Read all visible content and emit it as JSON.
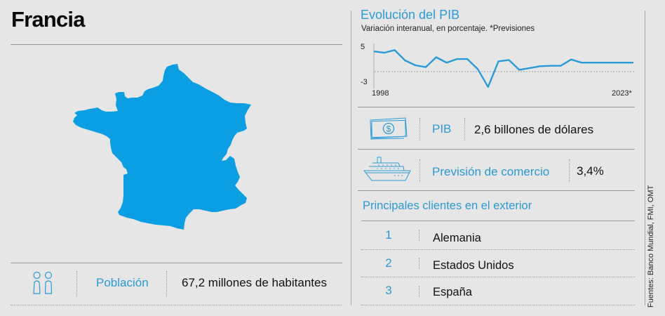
{
  "header": {
    "title": "Francia"
  },
  "colors": {
    "accent": "#2a9ad6",
    "map_fill": "#0b9ee3",
    "background": "#e6e6e6",
    "text": "#111111"
  },
  "population": {
    "icon": "people-icon",
    "label": "Población",
    "value": "67,2 millones de habitantes"
  },
  "gdp_chart": {
    "title": "Evolución del PIB",
    "subtitle": "Variación interanual, en porcentaje. *Previsiones",
    "y_top_label": "5",
    "y_bottom_label": "-3",
    "x_start_label": "1998",
    "x_end_label": "2023*"
  },
  "chart_data": {
    "type": "line",
    "title": "Evolución del PIB",
    "subtitle": "Variación interanual, en porcentaje. *Previsiones",
    "xlabel": "",
    "ylabel": "%",
    "x": [
      1998,
      1999,
      2000,
      2001,
      2002,
      2003,
      2004,
      2005,
      2006,
      2007,
      2008,
      2009,
      2010,
      2011,
      2012,
      2013,
      2014,
      2015,
      2016,
      2017,
      2018,
      2019,
      2020,
      2021,
      2022,
      2023
    ],
    "series": [
      {
        "name": "Variación interanual del PIB (%)",
        "values": [
          4.5,
          4.2,
          4.8,
          2.5,
          1.4,
          1.0,
          3.2,
          2.0,
          2.8,
          2.8,
          0.6,
          -3.4,
          2.3,
          2.6,
          0.4,
          0.8,
          1.2,
          1.3,
          1.3,
          2.7,
          2.0,
          2.0,
          2.0,
          2.0,
          2.0,
          2.0
        ]
      }
    ],
    "ylim": [
      -3,
      5
    ],
    "x_tick_labels": [
      "1998",
      "2023*"
    ],
    "y_tick_labels": [
      "5",
      "-3"
    ],
    "reference_line": {
      "y": 0,
      "style": "dashed"
    },
    "grid": false,
    "legend": null
  },
  "gdp": {
    "icon": "money-icon",
    "label": "PIB",
    "value": "2,6 billones de dólares"
  },
  "trade": {
    "icon": "ship-icon",
    "label": "Previsión de comercio",
    "value": "3,4%"
  },
  "clients": {
    "title": "Principales clientes en el exterior",
    "items": [
      {
        "rank": "1",
        "name": "Alemania"
      },
      {
        "rank": "2",
        "name": "Estados Unidos"
      },
      {
        "rank": "3",
        "name": "España"
      }
    ]
  },
  "sources": "Fuentes: Banco Mundial, FMI, OMT"
}
